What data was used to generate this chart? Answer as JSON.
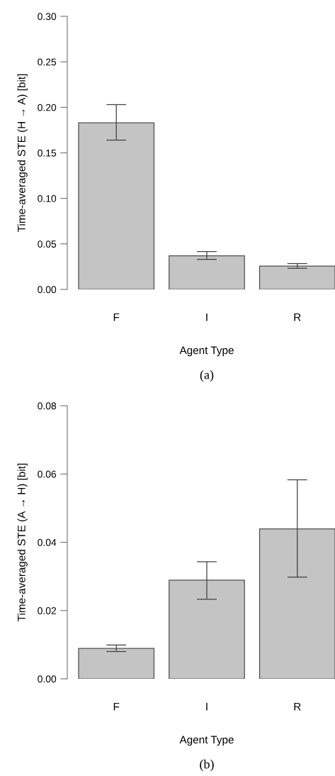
{
  "chart_data": [
    {
      "type": "bar",
      "categories": [
        "F",
        "I",
        "R"
      ],
      "values": [
        0.183,
        0.037,
        0.0257
      ],
      "color": "#c4c4c4",
      "errors": [
        [
          0.164,
          0.203
        ],
        [
          0.033,
          0.0416
        ],
        [
          0.0232,
          0.0284
        ]
      ],
      "xlabel": "Agent Type",
      "ylabel": "Time-averaged STE (H → A) [bit]",
      "ylim": [
        0,
        0.3
      ],
      "yticks": [
        {
          "value": 0,
          "label": "0.00"
        },
        {
          "value": 0.05,
          "label": "0.05"
        },
        {
          "value": 0.1,
          "label": "0.10"
        },
        {
          "value": 0.15,
          "label": "0.15"
        },
        {
          "value": 0.2,
          "label": "0.20"
        },
        {
          "value": 0.25,
          "label": "0.25"
        },
        {
          "value": 0.3,
          "label": "0.30"
        }
      ],
      "grid": false,
      "annotations": [
        "(a)"
      ]
    },
    {
      "type": "bar",
      "categories": [
        "F",
        "I",
        "R"
      ],
      "values": [
        0.0089,
        0.0289,
        0.0439
      ],
      "color": "#c4c4c4",
      "errors": [
        [
          0.008,
          0.0099
        ],
        [
          0.0233,
          0.0343
        ],
        [
          0.0298,
          0.0583
        ]
      ],
      "xlabel": "Agent Type",
      "ylabel": "Time-averaged STE (A → H) [bit]",
      "ylim": [
        0,
        0.08
      ],
      "yticks": [
        {
          "value": 0,
          "label": "0.00"
        },
        {
          "value": 0.02,
          "label": "0.02"
        },
        {
          "value": 0.04,
          "label": "0.04"
        },
        {
          "value": 0.06,
          "label": "0.06"
        },
        {
          "value": 0.08,
          "label": "0.08"
        }
      ],
      "grid": false,
      "annotations": [
        "(b)"
      ]
    }
  ]
}
